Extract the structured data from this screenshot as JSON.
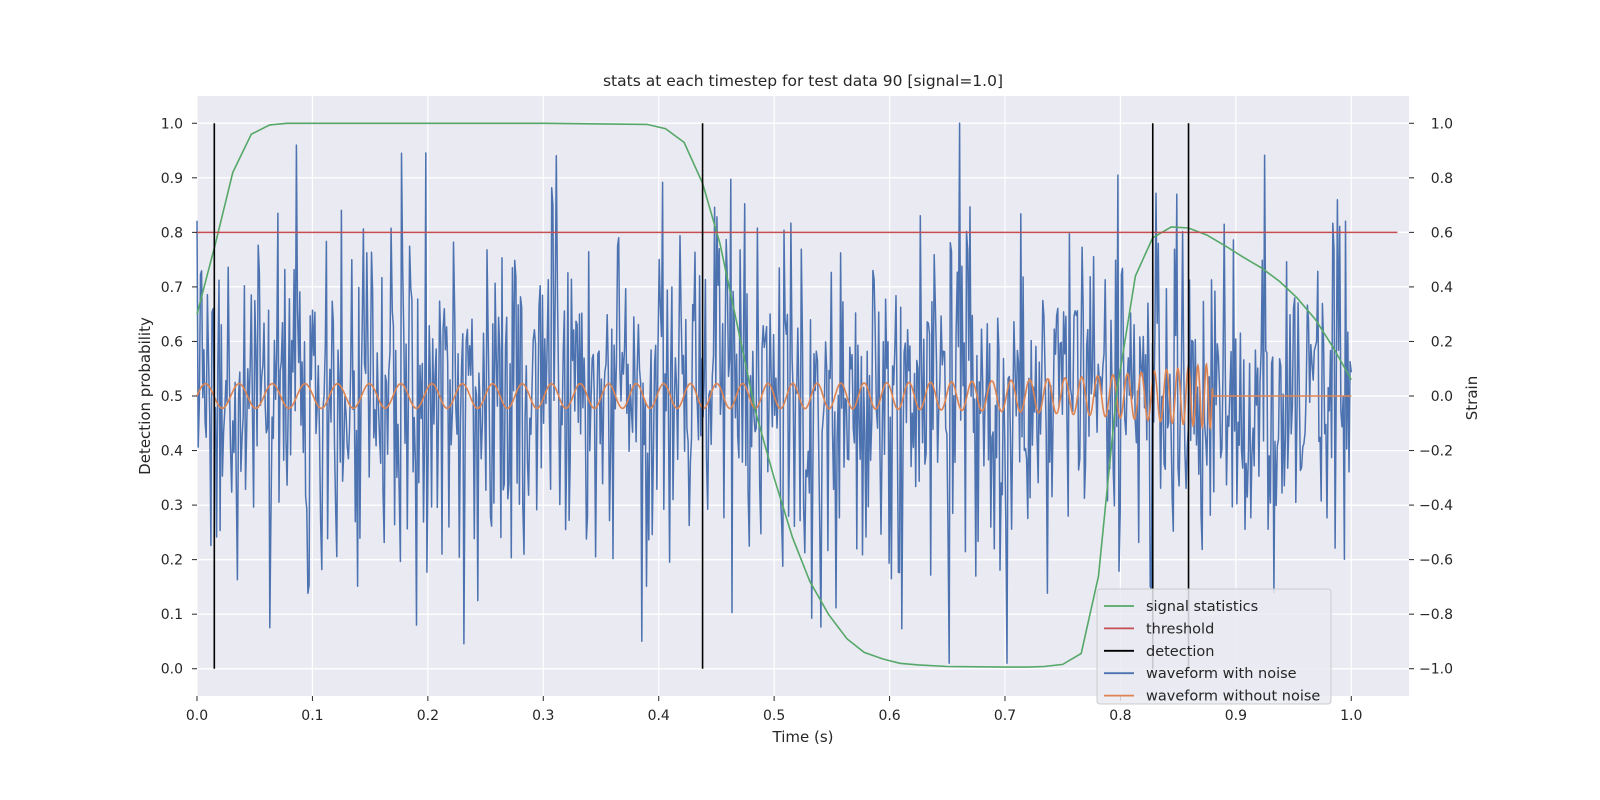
{
  "chart_data": {
    "type": "line",
    "title": "stats at each timestep for test data 90 [signal=1.0]",
    "xlabel": "Time (s)",
    "ylabel": "Detection probability",
    "y2label": "Strain",
    "xlim": [
      0.0,
      1.05
    ],
    "ylim": [
      -0.05,
      1.05
    ],
    "y2lim": [
      -1.1,
      1.1
    ],
    "x_ticks": [
      0.0,
      0.1,
      0.2,
      0.3,
      0.4,
      0.5,
      0.6,
      0.7,
      0.8,
      0.9,
      1.0
    ],
    "x_tick_labels": [
      "0.0",
      "0.1",
      "0.2",
      "0.3",
      "0.4",
      "0.5",
      "0.6",
      "0.7",
      "0.8",
      "0.9",
      "1.0"
    ],
    "y_ticks": [
      0.0,
      0.1,
      0.2,
      0.3,
      0.4,
      0.5,
      0.6,
      0.7,
      0.8,
      0.9,
      1.0
    ],
    "y_tick_labels": [
      "0.0",
      "0.1",
      "0.2",
      "0.3",
      "0.4",
      "0.5",
      "0.6",
      "0.7",
      "0.8",
      "0.9",
      "1.0"
    ],
    "y2_ticks": [
      -1.0,
      -0.8,
      -0.6,
      -0.4,
      -0.2,
      0.0,
      0.2,
      0.4,
      0.6,
      0.8,
      1.0
    ],
    "y2_tick_labels": [
      "−1.0",
      "−0.8",
      "−0.6",
      "−0.4",
      "−0.2",
      "0.0",
      "0.2",
      "0.4",
      "0.6",
      "0.8",
      "1.0"
    ],
    "grid": true,
    "legend_position": "lower-right",
    "series": [
      {
        "name": "signal statistics",
        "color": "#55a868",
        "axis": "left",
        "x": [
          0.0,
          0.016,
          0.031,
          0.047,
          0.063,
          0.078,
          0.094,
          0.2,
          0.3,
          0.39,
          0.406,
          0.422,
          0.438,
          0.453,
          0.469,
          0.484,
          0.5,
          0.516,
          0.531,
          0.547,
          0.563,
          0.578,
          0.594,
          0.609,
          0.625,
          0.65,
          0.7,
          0.72,
          0.734,
          0.75,
          0.766,
          0.781,
          0.797,
          0.813,
          0.828,
          0.844,
          0.859,
          0.875,
          0.891,
          0.906,
          0.922,
          0.938,
          0.953,
          0.969,
          0.984,
          1.0
        ],
        "y": [
          0.65,
          0.78,
          0.91,
          0.98,
          0.997,
          1.0,
          1.0,
          1.0,
          1.0,
          0.998,
          0.99,
          0.965,
          0.89,
          0.78,
          0.62,
          0.47,
          0.35,
          0.24,
          0.16,
          0.1,
          0.055,
          0.03,
          0.018,
          0.01,
          0.007,
          0.004,
          0.003,
          0.003,
          0.004,
          0.008,
          0.028,
          0.17,
          0.51,
          0.72,
          0.79,
          0.81,
          0.808,
          0.795,
          0.775,
          0.755,
          0.735,
          0.71,
          0.68,
          0.64,
          0.59,
          0.53
        ]
      },
      {
        "name": "threshold",
        "color": "#c44e52",
        "axis": "left",
        "x": [
          0.0,
          1.04
        ],
        "y": [
          0.8,
          0.8
        ]
      },
      {
        "name": "detection",
        "color": "#000000",
        "axis": "left",
        "x": [
          0.015,
          0.438,
          0.828,
          0.859
        ],
        "y_range": [
          0.0,
          1.0
        ]
      },
      {
        "name": "waveform with noise",
        "color": "#4c72b0",
        "axis": "right",
        "n_points": 1000,
        "x_range": [
          0.0,
          1.0
        ],
        "y_range_approx": [
          -0.98,
          1.0
        ],
        "peaks": [
          {
            "x": 0.086,
            "y": 0.92
          },
          {
            "x": 0.177,
            "y": 0.89
          },
          {
            "x": 0.661,
            "y": 1.0
          },
          {
            "x": 0.652,
            "y": -0.98
          },
          {
            "x": 0.063,
            "y": -0.85
          },
          {
            "x": 0.19,
            "y": -0.84
          },
          {
            "x": 0.849,
            "y": 0.74
          }
        ]
      },
      {
        "name": "waveform without noise",
        "color": "#dd8452",
        "axis": "right",
        "description_values": {
          "start_frequency_hz": 34,
          "end_x": 0.88,
          "amplitude_start": 0.045,
          "amplitude_peak": 0.12,
          "after_merger_value": 0.0
        }
      }
    ]
  }
}
